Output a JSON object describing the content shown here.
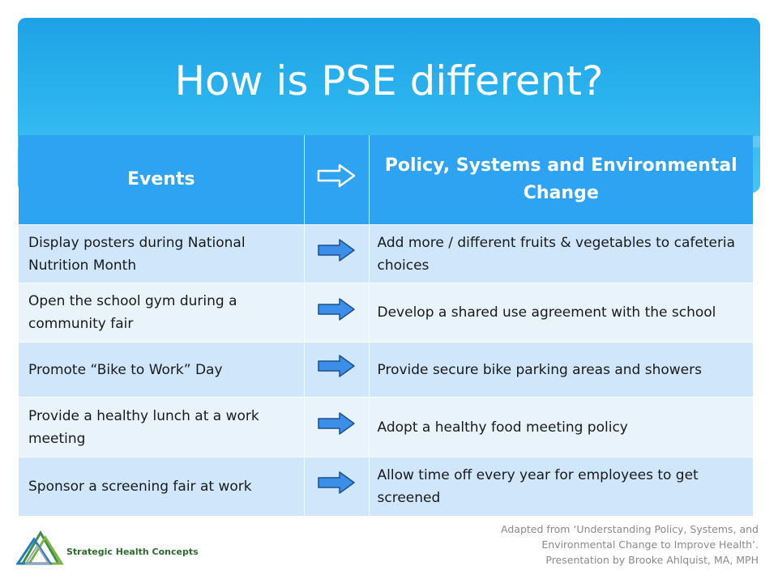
{
  "title": "How is PSE different?",
  "table": {
    "headers": [
      "Events",
      "Policy, Systems and Environmental Change"
    ],
    "rows": [
      {
        "event": "Display posters during National Nutrition Month",
        "change": "Add more / different fruits & vegetables to cafeteria choices"
      },
      {
        "event": "Open the school gym during a community fair",
        "change": "Develop a shared use agreement with the school"
      },
      {
        "event": "Promote “Bike to Work” Day",
        "change": "Provide secure bike parking areas and showers"
      },
      {
        "event": "Provide a healthy lunch at a work meeting",
        "change": "Adopt a healthy food meeting policy"
      },
      {
        "event": "Sponsor a screening fair at work",
        "change": "Allow time off every year for employees to get screened"
      }
    ]
  },
  "footer": {
    "lines": [
      "Adapted from ‘Understanding Policy, Systems, and",
      "Environmental Change to Improve Health’.",
      "Presentation by Brooke Ahlquist, MA, MPH"
    ]
  },
  "logo": {
    "name": "Strategic Health Concepts"
  },
  "colors": {
    "banner": "#1fa2e6",
    "header": "#2ea3f2",
    "row_odd": "#cfe6fb",
    "row_even": "#e9f3fc",
    "arrow_fill": "#3b8fe8"
  }
}
